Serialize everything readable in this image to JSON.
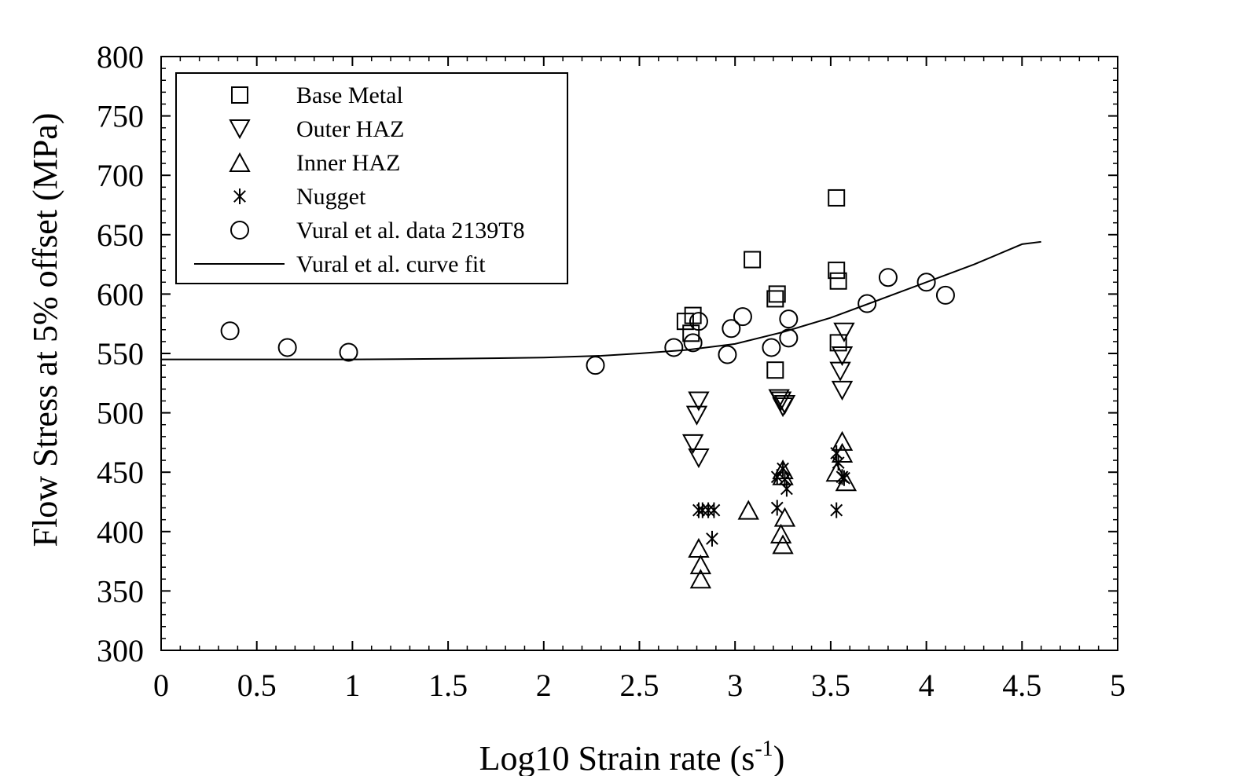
{
  "chart_data": {
    "type": "scatter",
    "xlabel_main": "Log10 Strain rate (s",
    "xlabel_sup": "-1",
    "xlabel_end": ")",
    "ylabel": "Flow Stress at 5% offset (MPa)",
    "xlim": [
      0,
      5
    ],
    "ylim": [
      300,
      800
    ],
    "x_ticks": [
      "0",
      "0.5",
      "1",
      "1.5",
      "2",
      "2.5",
      "3",
      "3.5",
      "4",
      "4.5",
      "5"
    ],
    "y_ticks": [
      "300",
      "350",
      "400",
      "450",
      "500",
      "550",
      "600",
      "650",
      "700",
      "750",
      "800"
    ],
    "grid": false,
    "legend_position": "top-left",
    "series": [
      {
        "name": "Base Metal",
        "marker": "square",
        "points": [
          [
            2.74,
            577
          ],
          [
            2.78,
            582
          ],
          [
            2.77,
            567
          ],
          [
            3.09,
            629
          ],
          [
            3.22,
            600
          ],
          [
            3.21,
            596
          ],
          [
            3.21,
            536
          ],
          [
            3.53,
            681
          ],
          [
            3.53,
            620
          ],
          [
            3.54,
            611
          ],
          [
            3.54,
            559
          ]
        ]
      },
      {
        "name": "Outer HAZ",
        "marker": "triangle-down",
        "points": [
          [
            2.81,
            510
          ],
          [
            2.8,
            498
          ],
          [
            2.78,
            474
          ],
          [
            2.81,
            462
          ],
          [
            3.23,
            512
          ],
          [
            3.24,
            510
          ],
          [
            3.25,
            505
          ],
          [
            3.26,
            507
          ],
          [
            3.57,
            568
          ],
          [
            3.56,
            548
          ],
          [
            3.55,
            535
          ],
          [
            3.56,
            519
          ]
        ]
      },
      {
        "name": "Inner HAZ",
        "marker": "triangle-up",
        "points": [
          [
            3.07,
            418
          ],
          [
            2.81,
            386
          ],
          [
            2.82,
            372
          ],
          [
            2.82,
            360
          ],
          [
            3.25,
            452
          ],
          [
            3.25,
            447
          ],
          [
            3.26,
            412
          ],
          [
            3.24,
            398
          ],
          [
            3.25,
            389
          ],
          [
            3.56,
            476
          ],
          [
            3.56,
            466
          ],
          [
            3.53,
            450
          ],
          [
            3.58,
            442
          ]
        ]
      },
      {
        "name": "Nugget",
        "marker": "asterisk",
        "points": [
          [
            2.81,
            418
          ],
          [
            2.83,
            418
          ],
          [
            2.86,
            418
          ],
          [
            2.89,
            418
          ],
          [
            2.88,
            394
          ],
          [
            3.22,
            420
          ],
          [
            3.22,
            446
          ],
          [
            3.25,
            453
          ],
          [
            3.26,
            444
          ],
          [
            3.27,
            436
          ],
          [
            3.53,
            466
          ],
          [
            3.54,
            458
          ],
          [
            3.56,
            446
          ],
          [
            3.57,
            445
          ],
          [
            3.53,
            418
          ]
        ]
      },
      {
        "name": "Vural et al. data 2139T8",
        "marker": "circle",
        "points": [
          [
            0.36,
            569
          ],
          [
            0.66,
            555
          ],
          [
            0.98,
            551
          ],
          [
            2.27,
            540
          ],
          [
            2.68,
            555
          ],
          [
            2.78,
            559
          ],
          [
            2.81,
            577
          ],
          [
            2.96,
            549
          ],
          [
            2.98,
            571
          ],
          [
            3.04,
            581
          ],
          [
            3.19,
            555
          ],
          [
            3.28,
            579
          ],
          [
            3.28,
            563
          ],
          [
            3.69,
            592
          ],
          [
            3.8,
            614
          ],
          [
            4.0,
            610
          ],
          [
            4.1,
            599
          ]
        ]
      },
      {
        "name": "Vural et al. curve fit",
        "marker": "line",
        "points": [
          [
            0,
            545
          ],
          [
            0.5,
            545
          ],
          [
            1.0,
            545
          ],
          [
            1.5,
            545.5
          ],
          [
            2.0,
            546.5
          ],
          [
            2.3,
            548
          ],
          [
            2.5,
            550
          ],
          [
            2.75,
            553
          ],
          [
            3.0,
            558
          ],
          [
            3.25,
            568
          ],
          [
            3.5,
            580
          ],
          [
            3.75,
            595
          ],
          [
            4.0,
            610
          ],
          [
            4.25,
            625
          ],
          [
            4.5,
            642
          ],
          [
            4.6,
            644
          ]
        ]
      }
    ]
  }
}
